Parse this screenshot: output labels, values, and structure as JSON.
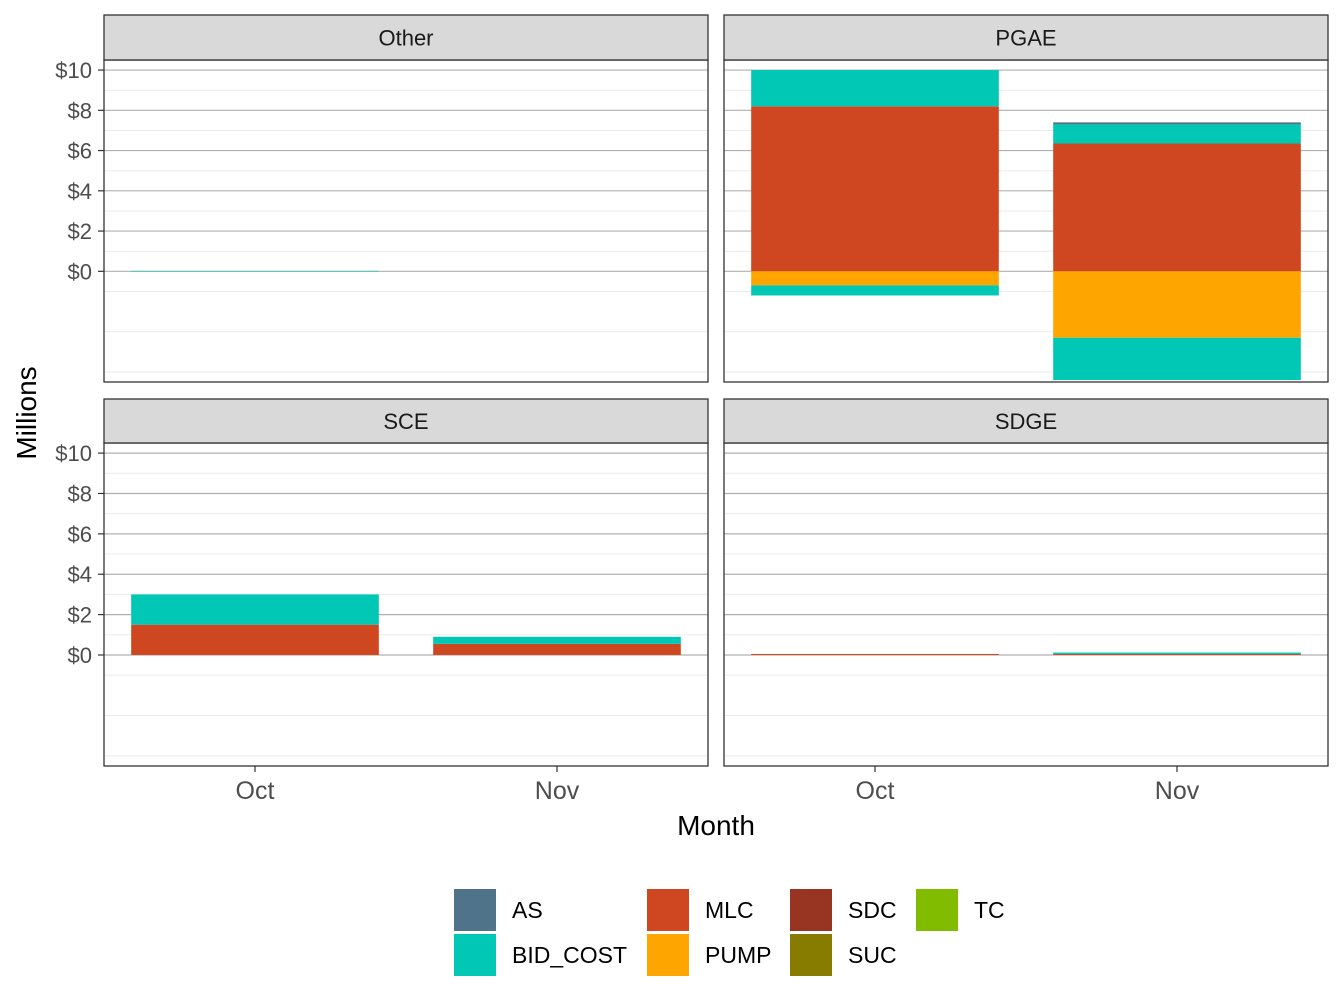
{
  "chart_data": {
    "type": "bar",
    "stacked": true,
    "facet_by": "utility",
    "xlabel": "Month",
    "ylabel": "Millions",
    "categories": [
      "Oct",
      "Nov"
    ],
    "ylim": [
      -5.5,
      10.5
    ],
    "yticks": [
      0,
      2,
      4,
      6,
      8,
      10
    ],
    "ytick_labels": [
      "$0",
      "$2",
      "$4",
      "$6",
      "$8",
      "$10"
    ],
    "grid": true,
    "legend_position": "bottom",
    "colors": {
      "AS": "#4f7489",
      "BID_COST": "#00c8b5",
      "MLC": "#cf4720",
      "PUMP": "#ffa500",
      "SDC": "#973522",
      "SUC": "#877c00",
      "TC": "#82bc00"
    },
    "legend": [
      {
        "name": "AS",
        "color": "#4f7489"
      },
      {
        "name": "BID_COST",
        "color": "#00c8b5"
      },
      {
        "name": "MLC",
        "color": "#cf4720"
      },
      {
        "name": "PUMP",
        "color": "#ffa500"
      },
      {
        "name": "SDC",
        "color": "#973522"
      },
      {
        "name": "SUC",
        "color": "#877c00"
      },
      {
        "name": "TC",
        "color": "#82bc00"
      }
    ],
    "panels": [
      {
        "name": "Other",
        "bars": {
          "Oct": [
            {
              "series": "BID_COST",
              "value": 0.02
            }
          ],
          "Nov": []
        }
      },
      {
        "name": "PGAE",
        "bars": {
          "Oct": [
            {
              "series": "MLC",
              "value": 8.2
            },
            {
              "series": "BID_COST",
              "value": 1.8
            },
            {
              "series": "PUMP",
              "value": -0.7
            },
            {
              "series": "BID_COST",
              "value": -0.5
            }
          ],
          "Nov": [
            {
              "series": "MLC",
              "value": 6.35
            },
            {
              "series": "BID_COST",
              "value": 0.95
            },
            {
              "series": "AS",
              "value": 0.1
            },
            {
              "series": "PUMP",
              "value": -3.3
            },
            {
              "series": "BID_COST",
              "value": -2.1
            }
          ]
        }
      },
      {
        "name": "SCE",
        "bars": {
          "Oct": [
            {
              "series": "MLC",
              "value": 1.5
            },
            {
              "series": "BID_COST",
              "value": 1.5
            }
          ],
          "Nov": [
            {
              "series": "MLC",
              "value": 0.55
            },
            {
              "series": "BID_COST",
              "value": 0.35
            }
          ]
        }
      },
      {
        "name": "SDGE",
        "bars": {
          "Oct": [
            {
              "series": "MLC",
              "value": 0.05
            }
          ],
          "Nov": [
            {
              "series": "MLC",
              "value": 0.05
            },
            {
              "series": "BID_COST",
              "value": 0.07
            }
          ]
        }
      }
    ]
  }
}
